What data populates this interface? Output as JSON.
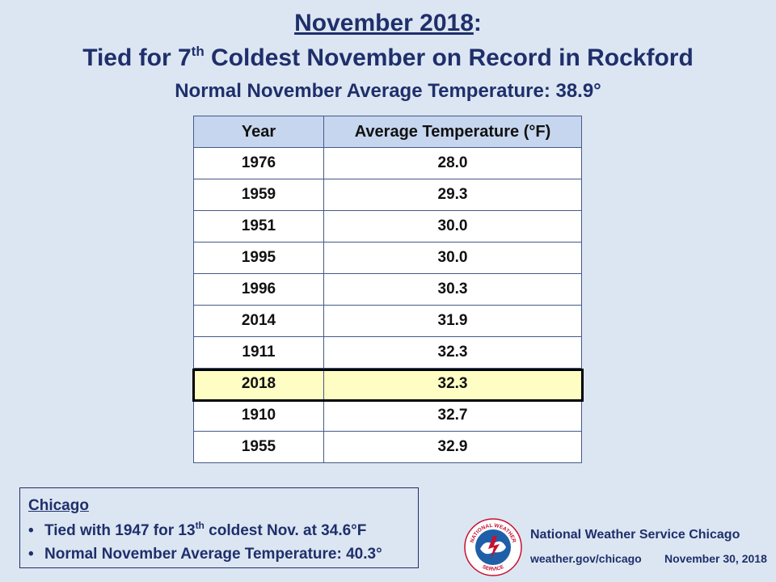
{
  "header": {
    "title_month": "November 2018",
    "title_colon": ":",
    "subtitle_prefix": "Tied for 7",
    "subtitle_sup": "th",
    "subtitle_suffix": " Coldest November on Record in Rockford",
    "normal_line": "Normal November Average Temperature: 38.9°"
  },
  "table": {
    "col_year": "Year",
    "col_temp": "Average Temperature (°F)",
    "rows": [
      {
        "year": "1976",
        "temp": "28.0"
      },
      {
        "year": "1959",
        "temp": "29.3"
      },
      {
        "year": "1951",
        "temp": "30.0"
      },
      {
        "year": "1995",
        "temp": "30.0"
      },
      {
        "year": "1996",
        "temp": "30.3"
      },
      {
        "year": "2014",
        "temp": "31.9"
      },
      {
        "year": "1911",
        "temp": "32.3"
      },
      {
        "year": "2018",
        "temp": "32.3"
      },
      {
        "year": "1910",
        "temp": "32.7"
      },
      {
        "year": "1955",
        "temp": "32.9"
      }
    ],
    "highlighted_year": "2018",
    "highlight_color": "#fdfdc4",
    "header_color": "#c5d6ee"
  },
  "chicago": {
    "title": "Chicago",
    "item1_prefix": "Tied with 1947 for 13",
    "item1_sup": "th",
    "item1_suffix": " coldest Nov. at 34.6°F",
    "item2": "Normal November Average Temperature:  40.3°"
  },
  "footer": {
    "logo_text": "NATIONAL WEATHER SERVICE",
    "agency": "National Weather Service  Chicago",
    "url": "weather.gov/chicago",
    "date": "November 30, 2018"
  },
  "colors": {
    "background": "#dce6f2",
    "title": "#1f2f6b"
  }
}
